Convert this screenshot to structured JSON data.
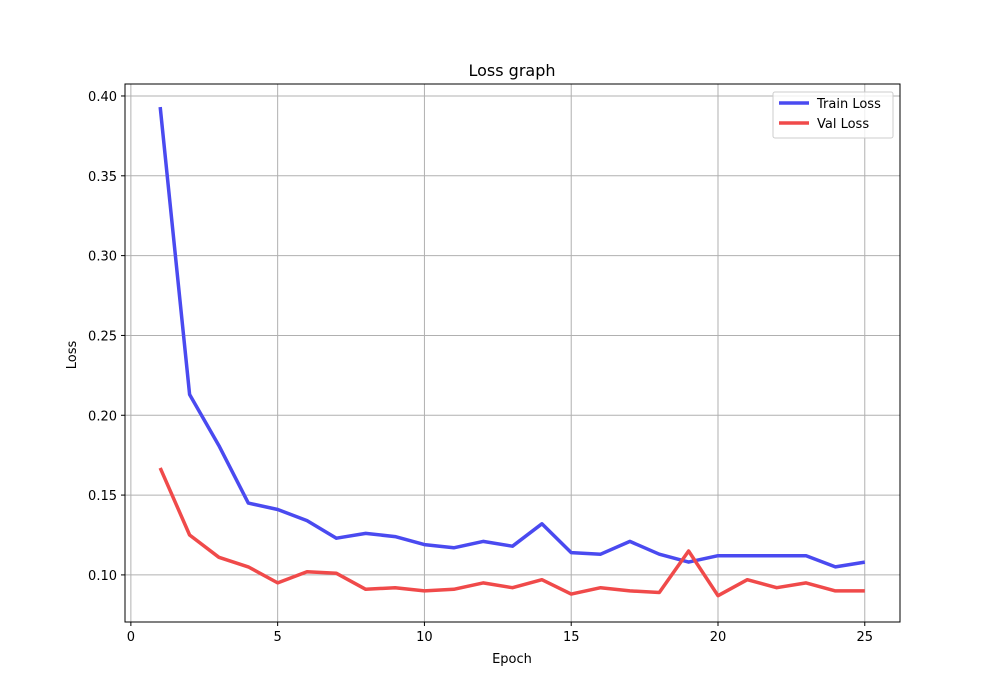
{
  "chart_data": {
    "type": "line",
    "title": "Loss graph",
    "xlabel": "Epoch",
    "ylabel": "Loss",
    "xlim": [
      -0.2,
      26.2
    ],
    "ylim": [
      0.0705,
      0.4075
    ],
    "xticks": [
      0,
      5,
      10,
      15,
      20,
      25
    ],
    "yticks": [
      0.1,
      0.15,
      0.2,
      0.25,
      0.3,
      0.35,
      0.4
    ],
    "grid": true,
    "legend_position": "top-right",
    "x": [
      1,
      2,
      3,
      4,
      5,
      6,
      7,
      8,
      9,
      10,
      11,
      12,
      13,
      14,
      15,
      16,
      17,
      18,
      19,
      20,
      21,
      22,
      23,
      24,
      25
    ],
    "series": [
      {
        "name": "Train Loss",
        "color": "#4a4af0",
        "values": [
          0.393,
          0.213,
          0.181,
          0.145,
          0.141,
          0.134,
          0.123,
          0.126,
          0.124,
          0.119,
          0.117,
          0.121,
          0.118,
          0.132,
          0.114,
          0.113,
          0.121,
          0.113,
          0.108,
          0.112,
          0.112,
          0.112,
          0.112,
          0.105,
          0.108
        ]
      },
      {
        "name": "Val Loss",
        "color": "#f04a4a",
        "values": [
          0.167,
          0.125,
          0.111,
          0.105,
          0.095,
          0.102,
          0.101,
          0.091,
          0.092,
          0.09,
          0.091,
          0.095,
          0.092,
          0.097,
          0.088,
          0.092,
          0.09,
          0.089,
          0.115,
          0.087,
          0.097,
          0.092,
          0.095,
          0.09,
          0.09
        ]
      }
    ]
  }
}
